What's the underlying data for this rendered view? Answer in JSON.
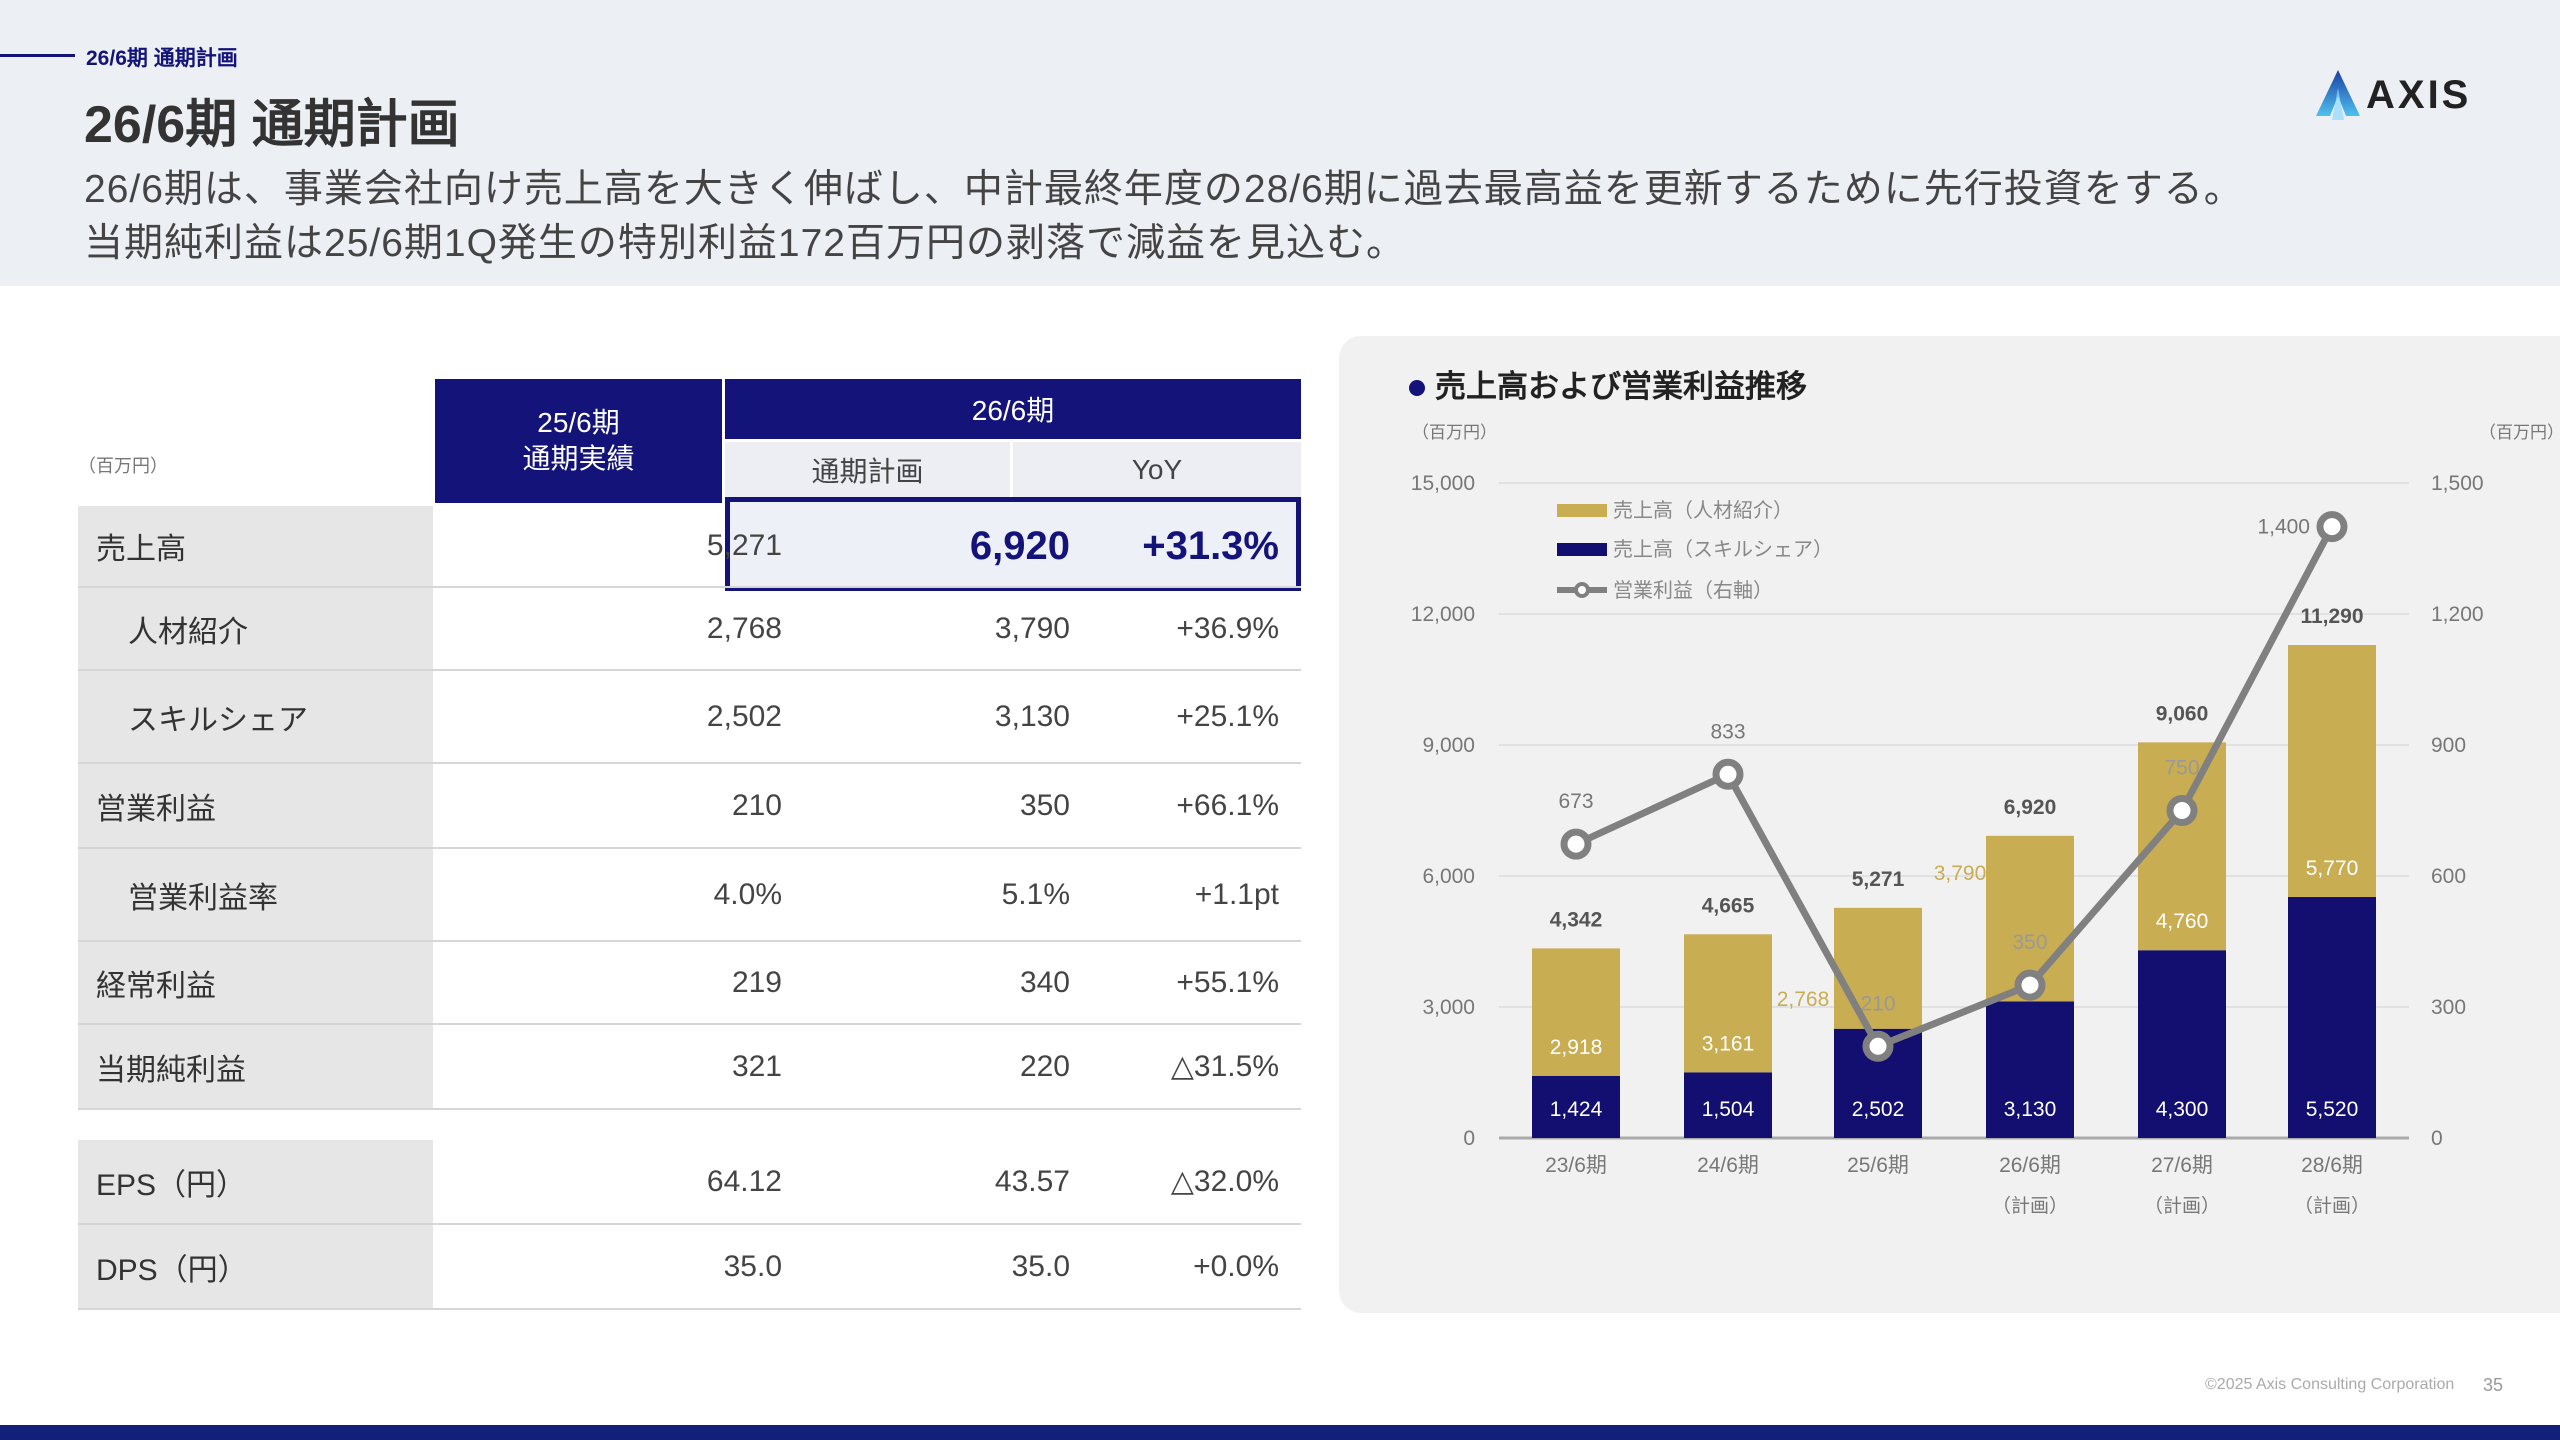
{
  "header": {
    "breadcrumb": "26/6期 通期計画",
    "title": "26/6期 通期計画",
    "subtitle_lines": [
      "26/6期は、事業会社向け売上高を大きく伸ばし、中計最終年度の28/6期に過去最高益を更新するために先行投資をする。",
      "当期純利益は25/6期1Q発生の特別利益172百万円の剥落で減益を見込む。"
    ],
    "logo_text": "AXIS"
  },
  "table": {
    "unit": "（百万円）",
    "col_prev_line1": "25/6期",
    "col_prev_line2": "通期実績",
    "col_group": "26/6期",
    "col_plan": "通期計画",
    "col_yoy": "YoY",
    "rows": [
      {
        "label": "売上高",
        "prev": "5,271",
        "plan": "6,920",
        "yoy": "+31.3%",
        "indent": false,
        "highlight": true
      },
      {
        "label": "人材紹介",
        "prev": "2,768",
        "plan": "3,790",
        "yoy": "+36.9%",
        "indent": true
      },
      {
        "label": "スキルシェア",
        "prev": "2,502",
        "plan": "3,130",
        "yoy": "+25.1%",
        "indent": true
      },
      {
        "label": "営業利益",
        "prev": "210",
        "plan": "350",
        "yoy": "+66.1%",
        "indent": false
      },
      {
        "label": "営業利益率",
        "prev": "4.0%",
        "plan": "5.1%",
        "yoy": "+1.1pt",
        "indent": true
      },
      {
        "label": "経常利益",
        "prev": "219",
        "plan": "340",
        "yoy": "+55.1%",
        "indent": false
      },
      {
        "label": "当期純利益",
        "prev": "321",
        "plan": "220",
        "yoy": "△31.5%",
        "indent": false
      },
      {
        "label": "EPS（円）",
        "prev": "64.12",
        "plan": "43.57",
        "yoy": "△32.0%",
        "indent": false
      },
      {
        "label": "DPS（円）",
        "prev": "35.0",
        "plan": "35.0",
        "yoy": "+0.0%",
        "indent": false
      }
    ]
  },
  "chart_data": {
    "type": "bar",
    "title": "売上高および営業利益推移",
    "ylabel_left": "（百万円）",
    "ylabel_right": "（百万円）",
    "ylim_left": [
      0,
      15000
    ],
    "ylim_right": [
      0,
      1500
    ],
    "yticks_left": [
      "0",
      "3,000",
      "6,000",
      "9,000",
      "12,000",
      "15,000"
    ],
    "yticks_right": [
      "0",
      "300",
      "600",
      "900",
      "1,200",
      "1,500"
    ],
    "categories": [
      "23/6期",
      "24/6期",
      "25/6期",
      "26/6期",
      "27/6期",
      "28/6期"
    ],
    "category_notes": [
      "",
      "",
      "",
      "（計画）",
      "（計画）",
      "（計画）"
    ],
    "legend_position": "top-left",
    "series": [
      {
        "name": "売上高（スキルシェア）",
        "kind": "stacked-bar",
        "color": "#130f70",
        "values": [
          1424,
          1504,
          2502,
          3130,
          4300,
          5520
        ],
        "labels": [
          "1,424",
          "1,504",
          "2,502",
          "3,130",
          "4,300",
          "5,520"
        ]
      },
      {
        "name": "売上高（人材紹介）",
        "kind": "stacked-bar",
        "color": "#c9ad52",
        "values": [
          2918,
          3161,
          2768,
          3790,
          4760,
          5770
        ],
        "labels": [
          "2,918",
          "3,161",
          "2,768",
          "3,790",
          "4,760",
          "5,770"
        ]
      },
      {
        "name": "営業利益（右軸）",
        "kind": "line",
        "axis": "right",
        "color": "#808080",
        "values": [
          673,
          833,
          210,
          350,
          750,
          1400
        ],
        "labels": [
          "673",
          "833",
          "210",
          "350",
          "750",
          "1,400"
        ]
      }
    ],
    "totals": [
      "4,342",
      "4,665",
      "5,271",
      "6,920",
      "9,060",
      "11,290"
    ],
    "grid": true
  },
  "footer": {
    "copyright": "©2025 Axis Consulting Corporation",
    "page": "35"
  }
}
